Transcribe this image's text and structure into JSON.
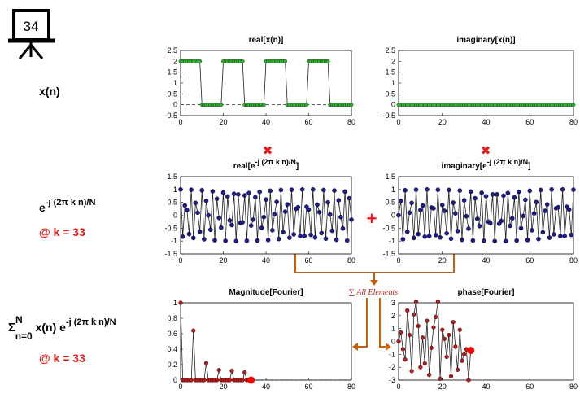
{
  "slide": {
    "number": "34",
    "left_labels": {
      "xn": "x(n)",
      "exp_base": "e",
      "exp_power": "-j (2π k n)/N",
      "k_note": "@ k = 33",
      "sum_symbol": "Σ",
      "sum_upper": "N",
      "sum_lower": "n=0",
      "sum_body": " x(n) e",
      "sum_power": "-j (2π k n)/N",
      "k_note2": "@ k = 33"
    },
    "operators": {
      "multiply": "✖",
      "plus": "+",
      "sum_text": "∑ All Elements"
    },
    "colors": {
      "green_marker": "#2fb82f",
      "blue_marker": "#1c1c8c",
      "red_marker": "#b81c1c",
      "highlight": "#ff0000",
      "arrow": "#c8600a",
      "op_red": "#e8191c"
    }
  },
  "chart_data": [
    {
      "type": "line",
      "title": "real[x(n)]",
      "x": [
        0,
        1,
        2,
        3,
        4,
        5,
        6,
        7,
        8,
        9,
        10,
        11,
        12,
        13,
        14,
        15,
        16,
        17,
        18,
        19,
        20,
        21,
        22,
        23,
        24,
        25,
        26,
        27,
        28,
        29,
        30,
        31,
        32,
        33,
        34,
        35,
        36,
        37,
        38,
        39,
        40,
        41,
        42,
        43,
        44,
        45,
        46,
        47,
        48,
        49,
        50,
        51,
        52,
        53,
        54,
        55,
        56,
        57,
        58,
        59,
        60,
        61,
        62,
        63,
        64,
        65,
        66,
        67,
        68,
        69,
        70,
        71,
        72,
        73,
        74,
        75,
        76,
        77,
        78,
        79,
        80
      ],
      "y": [
        2,
        2,
        2,
        2,
        2,
        2,
        2,
        2,
        2,
        2,
        0,
        0,
        0,
        0,
        0,
        0,
        0,
        0,
        0,
        0,
        2,
        2,
        2,
        2,
        2,
        2,
        2,
        2,
        2,
        2,
        0,
        0,
        0,
        0,
        0,
        0,
        0,
        0,
        0,
        0,
        2,
        2,
        2,
        2,
        2,
        2,
        2,
        2,
        2,
        2,
        0,
        0,
        0,
        0,
        0,
        0,
        0,
        0,
        0,
        0,
        2,
        2,
        2,
        2,
        2,
        2,
        2,
        2,
        2,
        2,
        0,
        0,
        0,
        0,
        0,
        0,
        0,
        0,
        0,
        0,
        0
      ],
      "xlim": [
        0,
        80
      ],
      "ylim": [
        -0.5,
        2.5
      ],
      "xticks": [
        0,
        20,
        40,
        60,
        80
      ],
      "yticks": [
        2.5,
        2,
        1.5,
        1,
        0.5,
        0,
        -0.5
      ],
      "zero_line": true
    },
    {
      "type": "line",
      "title": "imaginary[x(n)]",
      "x": [
        0,
        1,
        2,
        3,
        4,
        5,
        6,
        7,
        8,
        9,
        10,
        11,
        12,
        13,
        14,
        15,
        16,
        17,
        18,
        19,
        20,
        21,
        22,
        23,
        24,
        25,
        26,
        27,
        28,
        29,
        30,
        31,
        32,
        33,
        34,
        35,
        36,
        37,
        38,
        39,
        40,
        41,
        42,
        43,
        44,
        45,
        46,
        47,
        48,
        49,
        50,
        51,
        52,
        53,
        54,
        55,
        56,
        57,
        58,
        59,
        60,
        61,
        62,
        63,
        64,
        65,
        66,
        67,
        68,
        69,
        70,
        71,
        72,
        73,
        74,
        75,
        76,
        77,
        78,
        79,
        80
      ],
      "y": [
        0,
        0,
        0,
        0,
        0,
        0,
        0,
        0,
        0,
        0,
        0,
        0,
        0,
        0,
        0,
        0,
        0,
        0,
        0,
        0,
        0,
        0,
        0,
        0,
        0,
        0,
        0,
        0,
        0,
        0,
        0,
        0,
        0,
        0,
        0,
        0,
        0,
        0,
        0,
        0,
        0,
        0,
        0,
        0,
        0,
        0,
        0,
        0,
        0,
        0,
        0,
        0,
        0,
        0,
        0,
        0,
        0,
        0,
        0,
        0,
        0,
        0,
        0,
        0,
        0,
        0,
        0,
        0,
        0,
        0,
        0,
        0,
        0,
        0,
        0,
        0,
        0,
        0,
        0,
        0,
        0
      ],
      "xlim": [
        0,
        80
      ],
      "ylim": [
        -0.5,
        2.5
      ],
      "xticks": [
        0,
        20,
        40,
        60,
        80
      ],
      "yticks": [
        2.5,
        2,
        1.5,
        1,
        0.5,
        0,
        -0.5
      ],
      "zero_line": true
    },
    {
      "type": "line",
      "title": "real[e",
      "title_sup": "-j (2π k n)/N",
      "title_end": "]",
      "x": [
        0,
        1,
        2,
        3,
        4,
        5,
        6,
        7,
        8,
        9,
        10,
        11,
        12,
        13,
        14,
        15,
        16,
        17,
        18,
        19,
        20,
        21,
        22,
        23,
        24,
        25,
        26,
        27,
        28,
        29,
        30,
        31,
        32,
        33,
        34,
        35,
        36,
        37,
        38,
        39,
        40,
        41,
        42,
        43,
        44,
        45,
        46,
        47,
        48,
        49,
        50,
        51,
        52,
        53,
        54,
        55,
        56,
        57,
        58,
        59,
        60,
        61,
        62,
        63,
        64,
        65,
        66,
        67,
        68,
        69,
        70,
        71,
        72,
        73,
        74,
        75,
        76,
        77,
        78,
        79,
        80
      ],
      "y": [
        1.0,
        -0.83,
        0.38,
        0.2,
        -0.73,
        0.99,
        -0.88,
        0.48,
        0.1,
        -0.64,
        0.97,
        -0.93,
        0.56,
        -0.0,
        -0.56,
        0.93,
        -0.97,
        0.64,
        -0.1,
        -0.48,
        0.88,
        -0.99,
        0.73,
        -0.2,
        -0.38,
        0.83,
        -1.0,
        0.81,
        -0.3,
        -0.27,
        0.77,
        -0.99,
        0.86,
        -0.4,
        -0.17,
        0.7,
        -0.98,
        0.91,
        -0.49,
        -0.07,
        0.61,
        -0.96,
        0.95,
        -0.58,
        0.04,
        0.52,
        -0.92,
        0.98,
        -0.66,
        0.14,
        0.42,
        -0.87,
        0.99,
        -0.74,
        0.25,
        0.31,
        -0.81,
        1.0,
        -0.81,
        0.33,
        0.22,
        -0.76,
        1.0,
        -0.86,
        0.41,
        0.12,
        -0.69,
        0.98,
        -0.91,
        0.5,
        0.03,
        -0.6,
        0.96,
        -0.95,
        0.58,
        -0.07,
        -0.51,
        0.92,
        -0.98,
        0.66,
        -0.17
      ],
      "xlim": [
        0,
        80
      ],
      "ylim": [
        -1.5,
        1.5
      ],
      "xticks": [
        0,
        20,
        40,
        60,
        80
      ],
      "yticks": [
        1.5,
        1,
        0.5,
        0,
        -0.5,
        -1,
        -1.5
      ]
    },
    {
      "type": "line",
      "title": "imaginary[e",
      "title_sup": "-j (2π k n)/N",
      "title_end": "]",
      "x": [
        0,
        1,
        2,
        3,
        4,
        5,
        6,
        7,
        8,
        9,
        10,
        11,
        12,
        13,
        14,
        15,
        16,
        17,
        18,
        19,
        20,
        21,
        22,
        23,
        24,
        25,
        26,
        27,
        28,
        29,
        30,
        31,
        32,
        33,
        34,
        35,
        36,
        37,
        38,
        39,
        40,
        41,
        42,
        43,
        44,
        45,
        46,
        47,
        48,
        49,
        50,
        51,
        52,
        53,
        54,
        55,
        56,
        57,
        58,
        59,
        60,
        61,
        62,
        63,
        64,
        65,
        66,
        67,
        68,
        69,
        70,
        71,
        72,
        73,
        74,
        75,
        76,
        77,
        78,
        79,
        80
      ],
      "y": [
        0.0,
        0.56,
        -0.93,
        0.97,
        -0.64,
        0.1,
        0.48,
        -0.88,
        0.99,
        -0.73,
        0.2,
        0.38,
        -0.83,
        1.0,
        -0.81,
        0.3,
        0.27,
        -0.77,
        0.99,
        -0.86,
        0.4,
        0.17,
        -0.7,
        0.98,
        -0.91,
        0.49,
        0.07,
        -0.61,
        0.96,
        -0.95,
        0.58,
        -0.04,
        -0.52,
        0.92,
        -0.98,
        0.66,
        -0.14,
        -0.42,
        0.87,
        -0.99,
        0.74,
        -0.25,
        -0.31,
        0.81,
        -1.0,
        0.81,
        -0.33,
        -0.22,
        0.76,
        -1.0,
        0.86,
        -0.41,
        -0.12,
        0.69,
        -0.98,
        0.91,
        -0.5,
        -0.03,
        0.6,
        -0.96,
        0.95,
        -0.58,
        0.07,
        0.51,
        -0.92,
        0.98,
        -0.66,
        0.17,
        0.42,
        -0.87,
        1.0,
        -0.74,
        0.27,
        0.31,
        -0.81,
        1.0,
        -0.81,
        0.33,
        0.22,
        -0.76,
        0.99
      ],
      "xlim": [
        0,
        80
      ],
      "ylim": [
        -1.5,
        1.5
      ],
      "xticks": [
        0,
        20,
        40,
        60,
        80
      ],
      "yticks": [
        1.5,
        1,
        0.5,
        0,
        -0.5,
        -1,
        -1.5
      ]
    },
    {
      "type": "line",
      "title": "Magnitude[Fourier]",
      "x": [
        0,
        1,
        2,
        3,
        4,
        5,
        6,
        7,
        8,
        9,
        10,
        11,
        12,
        13,
        14,
        15,
        16,
        17,
        18,
        19,
        20,
        21,
        22,
        23,
        24,
        25,
        26,
        27,
        28,
        29,
        30,
        31,
        32,
        33
      ],
      "y": [
        1.0,
        0,
        0,
        0,
        0.0,
        0.0,
        0,
        0.0,
        0.0,
        0,
        0,
        0,
        0.22,
        0.0,
        0,
        0,
        0.0,
        0.0,
        0.0,
        0,
        0.13,
        0.0,
        0.0,
        0,
        0.0,
        0,
        0.0,
        0.0,
        0.1,
        0,
        0.0,
        0.0,
        0.0,
        0
      ],
      "y_fixed": [
        1.0,
        0,
        0,
        0,
        0,
        0,
        0.64,
        0,
        0,
        0,
        0,
        0,
        0.22,
        0,
        0,
        0,
        0,
        0,
        0.13,
        0,
        0,
        0,
        0,
        0,
        0.12,
        0,
        0,
        0,
        0,
        0,
        0.1,
        0,
        0,
        0
      ],
      "highlight_x": 33,
      "highlight_y": 0,
      "xlim": [
        0,
        80
      ],
      "ylim": [
        0,
        1
      ],
      "xticks": [
        0,
        20,
        40,
        60,
        80
      ],
      "yticks": [
        1,
        0.8,
        0.6,
        0.4,
        0.2,
        0
      ]
    },
    {
      "type": "line",
      "title": "phase[Fourier]",
      "x": [
        0,
        1,
        2,
        3,
        4,
        5,
        6,
        7,
        8,
        9,
        10,
        11,
        12,
        13,
        14,
        15,
        16,
        17,
        18,
        19,
        20,
        21,
        22,
        23,
        24,
        25,
        26,
        27,
        28,
        29,
        30,
        31,
        32,
        33
      ],
      "y": [
        0,
        0.7,
        -0.6,
        -1.4,
        2.4,
        0.5,
        -2.3,
        2.1,
        3.1,
        1.2,
        -2.0,
        0.3,
        -1.7,
        1.6,
        -2.6,
        -0.5,
        1.1,
        1.9,
        3.1,
        -2.9,
        0.9,
        0.2,
        -1.2,
        0.5,
        -2.7,
        1.5,
        -0.4,
        -2.2,
        0.9,
        -1.5,
        -1.0,
        -0.6,
        -3.0,
        -0.7
      ],
      "highlight_x": 33,
      "highlight_y": -0.7,
      "xlim": [
        0,
        80
      ],
      "ylim": [
        -3,
        3
      ],
      "xticks": [
        0,
        20,
        40,
        60,
        80
      ],
      "yticks": [
        3,
        2,
        1,
        0,
        -1,
        -2,
        -3
      ]
    }
  ]
}
